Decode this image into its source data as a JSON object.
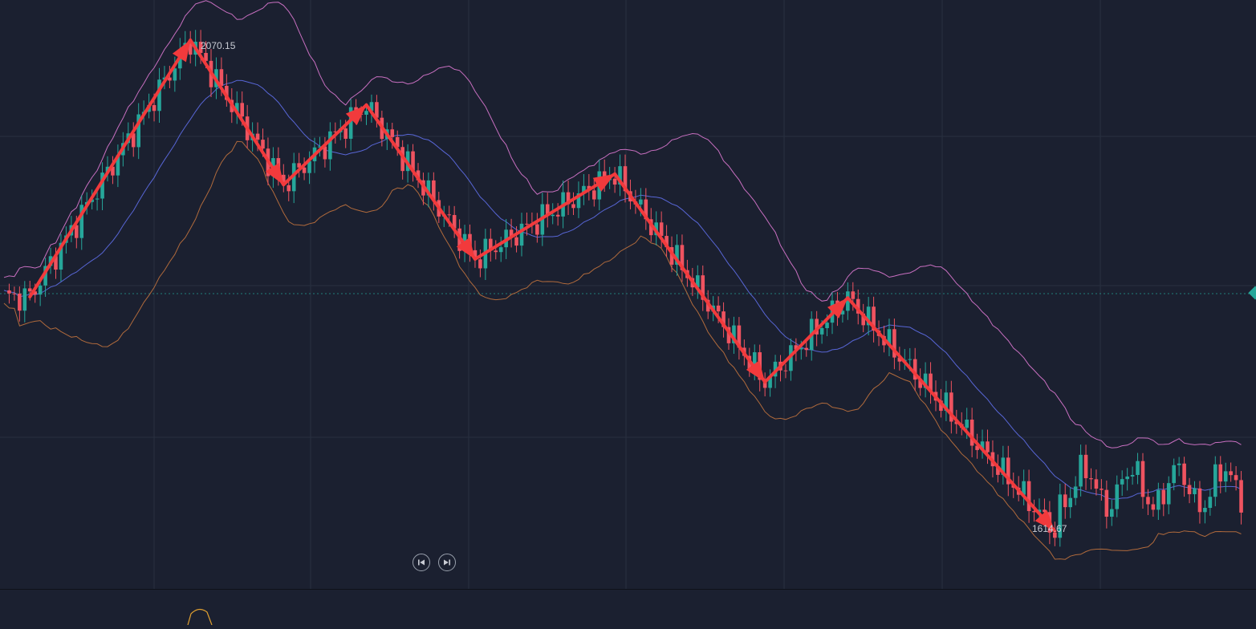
{
  "chart_data": {
    "type": "candlestick",
    "overlay": "bollinger-bands",
    "annotations": {
      "high_label": "2070.15",
      "low_label": "1614.67",
      "zigzag_arrows": "red"
    },
    "zigzag": [
      {
        "x": 5,
        "y": 1832
      },
      {
        "x": 36,
        "y": 2070.15
      },
      {
        "x": 54,
        "y": 1936
      },
      {
        "x": 70,
        "y": 2010
      },
      {
        "x": 91,
        "y": 1867
      },
      {
        "x": 118,
        "y": 1946
      },
      {
        "x": 147,
        "y": 1753
      },
      {
        "x": 163,
        "y": 1831
      },
      {
        "x": 203,
        "y": 1614.67
      }
    ],
    "colors": {
      "background": "#1b2030",
      "grid": "#283040",
      "up": "#26a69a",
      "down": "#ef5360",
      "upper_band": "#c86fc0",
      "middle_band": "#5866d6",
      "lower_band": "#b06a3c",
      "arrow": "#f23a3c"
    }
  },
  "controls": {
    "prev_icon": "skip-back-icon",
    "next_icon": "skip-forward-icon"
  }
}
